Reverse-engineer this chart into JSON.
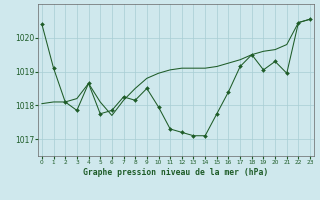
{
  "title": "Graphe pression niveau de la mer (hPa)",
  "bg_color": "#cfe8ed",
  "grid_color": "#a8cdd4",
  "line_color": "#1e5c28",
  "marker_color": "#1e5c28",
  "ylim": [
    1016.5,
    1021.0
  ],
  "yticks": [
    1017,
    1018,
    1019,
    1020
  ],
  "series1": [
    1020.4,
    1019.1,
    1018.1,
    1017.85,
    1018.65,
    1017.75,
    1017.85,
    1018.25,
    1018.15,
    1018.5,
    1017.95,
    1017.3,
    1017.2,
    1017.1,
    1017.1,
    1017.75,
    1018.4,
    1019.15,
    1019.5,
    1019.05,
    1019.3,
    1018.95,
    1020.45,
    1020.55
  ],
  "series2": [
    1018.05,
    1018.1,
    1018.1,
    1018.2,
    1018.65,
    1018.1,
    1017.7,
    1018.15,
    1018.5,
    1018.8,
    1018.95,
    1019.05,
    1019.1,
    1019.1,
    1019.1,
    1019.15,
    1019.25,
    1019.35,
    1019.5,
    1019.6,
    1019.65,
    1019.8,
    1020.45,
    1020.55
  ]
}
